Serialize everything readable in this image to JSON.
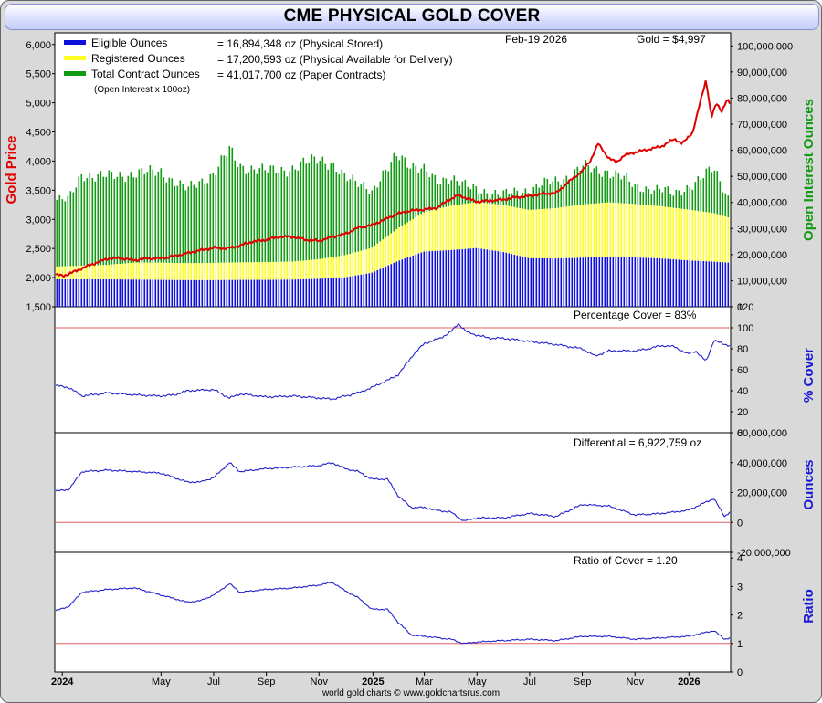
{
  "title": "CME PHYSICAL GOLD COVER",
  "credit": "world gold charts © www.goldchartsrus.com",
  "legend": {
    "eligible_label": "Eligible Ounces",
    "eligible_value": "= 16,894,348 oz (Physical Stored)",
    "registered_label": "Registered Ounces",
    "registered_value": "= 17,200,593 oz (Physical Available for Delivery)",
    "total_label": "Total Contract Ounces",
    "total_value": "= 41,017,700 oz (Paper Contracts)",
    "oi_note": "(Open Interest x 100oz)",
    "date": "Feb-19  2026",
    "gold_price": "Gold = $4,997"
  },
  "colors": {
    "eligible": "#1010dd",
    "registered": "#ffff22",
    "total": "#139a13",
    "gold": "#e00000",
    "cover_line": "#2222cc",
    "ref_line": "#e06060"
  },
  "chart_data": [
    {
      "id": "main",
      "type": "bar",
      "title": "CME PHYSICAL GOLD COVER",
      "ylabel_left": "Gold Price",
      "ylabel_right": "Open Interest Ounces",
      "ylim_left": [
        1500,
        6200
      ],
      "ylim_right": [
        0,
        105000000
      ],
      "yticks_left": [
        "1,500",
        "2,000",
        "2,500",
        "3,000",
        "3,500",
        "4,000",
        "4,500",
        "5,000",
        "5,500",
        "6,000"
      ],
      "yticks_right": [
        "0",
        "10,000,000",
        "20,000,000",
        "30,000,000",
        "40,000,000",
        "50,000,000",
        "60,000,000",
        "70,000,000",
        "80,000,000",
        "90,000,000",
        "100,000,000"
      ],
      "x_tick_labels": [
        "2024",
        "May",
        "Jul",
        "Sep",
        "Nov",
        "2025",
        "Mar",
        "May",
        "Jul",
        "Sep",
        "Nov",
        "2026"
      ],
      "x_range_months": [
        0,
        25.6
      ],
      "series": [
        {
          "name": "Eligible Ounces",
          "t": [
            0,
            1,
            2,
            3,
            4,
            5,
            6,
            7,
            8,
            9,
            10,
            11,
            12,
            13,
            14,
            15,
            16,
            17,
            18,
            19,
            20,
            21,
            22,
            23,
            24,
            25,
            25.6
          ],
          "values": [
            10500000,
            10500000,
            10500000,
            10400000,
            10300000,
            10200000,
            10200000,
            10300000,
            10300000,
            10400000,
            10700000,
            11300000,
            13000000,
            17500000,
            21200000,
            21700000,
            22500000,
            21000000,
            18600000,
            18500000,
            18800000,
            19200000,
            18900000,
            18500000,
            17800000,
            17300000,
            16894348
          ]
        },
        {
          "name": "Registered Ounces",
          "t": [
            0,
            1,
            2,
            3,
            4,
            5,
            6,
            7,
            8,
            9,
            10,
            11,
            12,
            13,
            14,
            15,
            16,
            17,
            18,
            19,
            20,
            21,
            22,
            23,
            24,
            25,
            25.6
          ],
          "values": [
            4900000,
            5200000,
            5600000,
            6500000,
            6600000,
            6500000,
            6600000,
            6700000,
            6800000,
            6900000,
            7500000,
            8500000,
            9500000,
            12500000,
            15000000,
            17000000,
            17600000,
            18000000,
            18500000,
            19300000,
            20400000,
            20800000,
            20500000,
            20000000,
            19500000,
            18600000,
            17200593
          ]
        },
        {
          "name": "Total Contract Ounces",
          "t": [
            0,
            0.5,
            1,
            1.5,
            2,
            3,
            4,
            4.5,
            5,
            6,
            6.6,
            7,
            8,
            9,
            10,
            10.5,
            11,
            11.8,
            12,
            12.6,
            13,
            13.6,
            14,
            14.5,
            15,
            15.6,
            16,
            17,
            17.5,
            18,
            18.5,
            19,
            19.5,
            20,
            20.5,
            21,
            21.5,
            22,
            23,
            23.5,
            24,
            24.5,
            25,
            25.6
          ],
          "values": [
            41000000,
            41000000,
            51000000,
            50000000,
            50000000,
            51000000,
            52000000,
            48000000,
            45000000,
            51000000,
            60000000,
            54000000,
            52000000,
            53000000,
            57000000,
            55000000,
            49000000,
            47000000,
            44000000,
            52000000,
            59000000,
            54000000,
            52000000,
            48000000,
            50000000,
            46000000,
            45000000,
            43000000,
            44000000,
            45000000,
            47000000,
            48000000,
            50000000,
            54000000,
            52000000,
            52000000,
            50000000,
            46000000,
            45000000,
            43000000,
            46000000,
            49000000,
            53000000,
            41017700
          ]
        },
        {
          "name": "Gold Price",
          "t": [
            0,
            0.3,
            0.7,
            1,
            1.5,
            2,
            2.5,
            3,
            3.5,
            4,
            4.5,
            5,
            5.5,
            6,
            6.5,
            7,
            7.5,
            8,
            8.5,
            9,
            9.5,
            10,
            10.5,
            11,
            11.5,
            12,
            12.5,
            13,
            13.5,
            14,
            14.5,
            14.9,
            15.3,
            15.7,
            16,
            16.5,
            17,
            17.5,
            18,
            18.5,
            19,
            19.5,
            20,
            20.3,
            20.6,
            21,
            21.3,
            21.6,
            22,
            22.5,
            23,
            23.5,
            23.8,
            24,
            24.2,
            24.5,
            24.7,
            24.9,
            25.1,
            25.3,
            25.5,
            25.6
          ],
          "values": [
            2050,
            2030,
            2100,
            2160,
            2250,
            2330,
            2330,
            2300,
            2330,
            2330,
            2370,
            2420,
            2470,
            2510,
            2500,
            2550,
            2620,
            2650,
            2700,
            2700,
            2650,
            2630,
            2700,
            2750,
            2860,
            2900,
            3000,
            3100,
            3150,
            3170,
            3200,
            3330,
            3410,
            3350,
            3300,
            3320,
            3340,
            3380,
            3400,
            3440,
            3450,
            3650,
            3830,
            4000,
            4300,
            4050,
            3980,
            4100,
            4150,
            4200,
            4250,
            4380,
            4300,
            4400,
            4500,
            5050,
            5400,
            4750,
            5000,
            4850,
            5050,
            4997
          ]
        }
      ]
    },
    {
      "id": "cover",
      "type": "line",
      "label": "Percentage Cover = 83%",
      "ylabel": "% Cover",
      "ylim": [
        0,
        120
      ],
      "yticks": [
        "0",
        "20",
        "40",
        "60",
        "80",
        "100",
        "120"
      ],
      "reference": 100,
      "t": [
        0,
        0.5,
        1,
        2,
        3,
        4,
        4.5,
        5,
        6,
        6.6,
        7,
        8,
        9,
        10,
        10.5,
        11,
        11.5,
        12,
        12.6,
        13,
        13.6,
        14,
        14.6,
        15,
        15.3,
        15.6,
        16,
        16.5,
        17,
        18,
        19,
        20,
        20.5,
        21,
        22,
        22.5,
        23,
        23.5,
        24,
        24.3,
        24.7,
        25,
        25.3,
        25.6
      ],
      "values": [
        45,
        43,
        35,
        38,
        36,
        35,
        36,
        40,
        41,
        33,
        37,
        34,
        35,
        33,
        32,
        35,
        38,
        43,
        50,
        55,
        75,
        85,
        90,
        96,
        104,
        96,
        93,
        90,
        90,
        87,
        84,
        80,
        73,
        78,
        78,
        80,
        83,
        82,
        75,
        78,
        68,
        88,
        85,
        83
      ]
    },
    {
      "id": "differential",
      "type": "line",
      "label": "Differential = 6,922,759 oz",
      "ylabel": "Ounces",
      "ylim": [
        -20000000,
        60000000
      ],
      "yticks": [
        "-20,000,000",
        "0",
        "20,000,000",
        "40,000,000",
        "60,000,000"
      ],
      "reference": 0,
      "t": [
        0,
        0.5,
        1,
        2,
        3,
        4,
        5,
        5.5,
        6,
        6.6,
        7,
        8,
        9,
        10,
        10.5,
        11,
        11.5,
        12,
        12.6,
        13,
        13.5,
        14,
        14.5,
        15,
        15.5,
        16,
        17,
        18,
        19,
        20,
        21,
        22,
        23,
        24,
        24.5,
        25,
        25.4,
        25.6
      ],
      "values": [
        21000000,
        22000000,
        34000000,
        35000000,
        34000000,
        33000000,
        27000000,
        27000000,
        30000000,
        40000000,
        34000000,
        36000000,
        37000000,
        38000000,
        40000000,
        36000000,
        34000000,
        29000000,
        29000000,
        18000000,
        10000000,
        10000000,
        8000000,
        7000000,
        1000000,
        3000000,
        3000000,
        6000000,
        4000000,
        12000000,
        11000000,
        5000000,
        6000000,
        8000000,
        12000000,
        16000000,
        4000000,
        6922759
      ]
    },
    {
      "id": "ratio",
      "type": "line",
      "label": "Ratio of Cover = 1.20",
      "ylabel": "Ratio",
      "ylim": [
        0,
        4.2
      ],
      "yticks": [
        "0",
        "1",
        "2",
        "3",
        "4"
      ],
      "reference": 1,
      "t": [
        0,
        0.5,
        1,
        2,
        3,
        4,
        5,
        5.5,
        6,
        6.6,
        7,
        8,
        9,
        10,
        10.5,
        11,
        11.5,
        12,
        12.6,
        13,
        13.5,
        14,
        14.5,
        15,
        15.5,
        16,
        17,
        18,
        19,
        20,
        21,
        22,
        23,
        24,
        24.5,
        25,
        25.4,
        25.6
      ],
      "values": [
        2.15,
        2.3,
        2.8,
        2.9,
        2.95,
        2.7,
        2.45,
        2.5,
        2.7,
        3.1,
        2.8,
        2.9,
        2.95,
        3.05,
        3.15,
        2.85,
        2.6,
        2.2,
        2.2,
        1.75,
        1.3,
        1.25,
        1.2,
        1.15,
        1.0,
        1.05,
        1.1,
        1.15,
        1.1,
        1.25,
        1.25,
        1.15,
        1.2,
        1.25,
        1.35,
        1.45,
        1.15,
        1.2
      ]
    }
  ]
}
